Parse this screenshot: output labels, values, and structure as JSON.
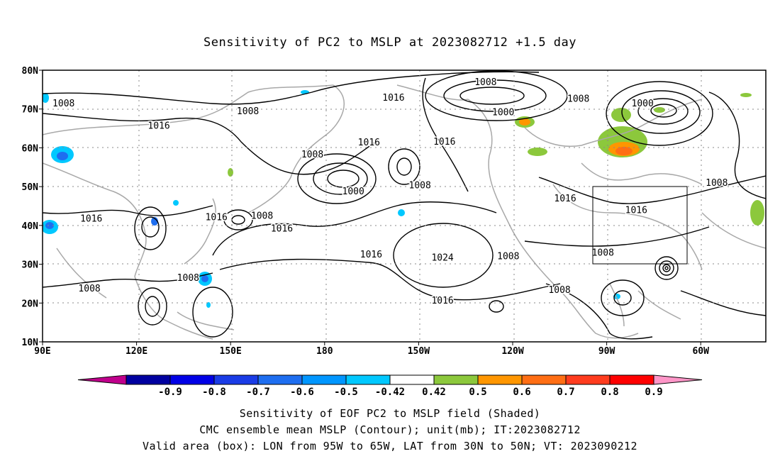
{
  "title": "Sensitivity of PC2 to MSLP at 2023082712 +1.5 day",
  "lat_labels": [
    "80N",
    "70N",
    "60N",
    "50N",
    "40N",
    "30N",
    "20N",
    "10N"
  ],
  "lon_labels": [
    "90E",
    "120E",
    "150E",
    "180",
    "150W",
    "120W",
    "90W",
    "60W"
  ],
  "contour_labels": [
    {
      "text": "1008",
      "lon": 96.7,
      "lat": 71.6
    },
    {
      "text": "1008",
      "lon": 155.3,
      "lat": 69.6
    },
    {
      "text": "1016",
      "lon": 127.0,
      "lat": 65.8
    },
    {
      "text": "1016",
      "lon": -158.4,
      "lat": 73.1
    },
    {
      "text": "1008",
      "lon": -129.1,
      "lat": 77.1
    },
    {
      "text": "1000",
      "lon": -123.5,
      "lat": 69.3
    },
    {
      "text": "1008",
      "lon": -99.6,
      "lat": 72.8
    },
    {
      "text": "1000",
      "lon": -79.2,
      "lat": 71.6
    },
    {
      "text": "1016",
      "lon": -166.2,
      "lat": 61.5
    },
    {
      "text": "1016",
      "lon": -142.2,
      "lat": 61.7
    },
    {
      "text": "1008",
      "lon": 175.8,
      "lat": 58.4
    },
    {
      "text": "1000",
      "lon": -171.2,
      "lat": 48.9
    },
    {
      "text": "1008",
      "lon": -150.0,
      "lat": 50.5
    },
    {
      "text": "1008",
      "lon": -55.6,
      "lat": 51.1
    },
    {
      "text": "1016",
      "lon": -103.8,
      "lat": 47.1
    },
    {
      "text": "1016",
      "lon": -81.2,
      "lat": 44.1
    },
    {
      "text": "1016",
      "lon": 105.5,
      "lat": 41.9
    },
    {
      "text": "1016",
      "lon": 145.3,
      "lat": 42.3
    },
    {
      "text": "1008",
      "lon": 159.8,
      "lat": 42.6
    },
    {
      "text": "1016",
      "lon": 166.1,
      "lat": 39.3
    },
    {
      "text": "1016",
      "lon": -165.5,
      "lat": 32.7
    },
    {
      "text": "1024",
      "lon": -142.8,
      "lat": 31.8
    },
    {
      "text": "1008",
      "lon": -121.9,
      "lat": 32.2
    },
    {
      "text": "1008",
      "lon": -91.8,
      "lat": 33.1
    },
    {
      "text": "1008",
      "lon": 136.3,
      "lat": 26.6
    },
    {
      "text": "1008",
      "lon": 104.9,
      "lat": 23.9
    },
    {
      "text": "1008",
      "lon": -105.6,
      "lat": 23.5
    },
    {
      "text": "1016",
      "lon": -142.8,
      "lat": 20.8
    }
  ],
  "colorbar": {
    "labels": [
      "-0.9",
      "-0.8",
      "-0.7",
      "-0.6",
      "-0.5",
      "-0.42",
      "0.42",
      "0.5",
      "0.6",
      "0.7",
      "0.8",
      "0.9"
    ],
    "colors": [
      "#c0008c",
      "#0000a0",
      "#0000e6",
      "#1a3ce6",
      "#1e6ef0",
      "#0096ff",
      "#00c8ff",
      "#ffffff",
      "#8cc83c",
      "#ff9600",
      "#ff6e14",
      "#ff3c1e",
      "#ff0000",
      "#ff96c8"
    ]
  },
  "captions": [
    "Sensitivity of EOF PC2 to MSLP field (Shaded)",
    "CMC ensemble mean MSLP (Contour); unit(mb); IT:2023082712",
    "Valid area (box): LON from 95W to 65W, LAT from 30N to 50N; VT: 2023090212"
  ]
}
